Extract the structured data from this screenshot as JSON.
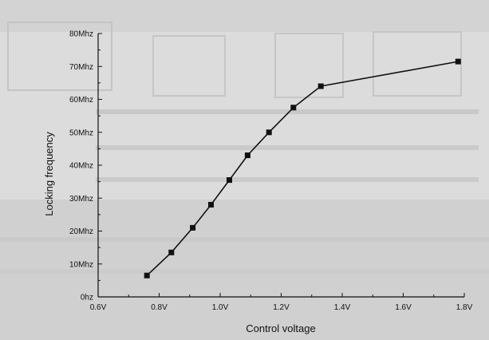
{
  "chart_data": {
    "type": "line",
    "xlabel": "Control voltage",
    "ylabel": "Locking frequency",
    "xlim": [
      0.6,
      1.8
    ],
    "ylim": [
      0,
      80
    ],
    "x_ticks": [
      0.6,
      0.8,
      1.0,
      1.2,
      1.4,
      1.6,
      1.8
    ],
    "x_tick_labels": [
      "0.6V",
      "0.8V",
      "1.0V",
      "1.2V",
      "1.4V",
      "1.6V",
      "1.8V"
    ],
    "y_ticks": [
      0,
      10,
      20,
      30,
      40,
      50,
      60,
      70,
      80
    ],
    "y_tick_labels": [
      "0hz",
      "10Mhz",
      "20Mhz",
      "30Mhz",
      "40Mhz",
      "50Mhz",
      "60Mhz",
      "70Mhz",
      "80Mhz"
    ],
    "grid": false,
    "series": [
      {
        "x": [
          0.76,
          0.84,
          0.91,
          0.97,
          1.03,
          1.09,
          1.16,
          1.24,
          1.33,
          1.78
        ],
        "y": [
          6.5,
          13.5,
          21,
          28,
          35.5,
          43,
          50,
          57.5,
          64,
          71.5
        ],
        "color": "#111111",
        "marker": "square"
      }
    ]
  }
}
